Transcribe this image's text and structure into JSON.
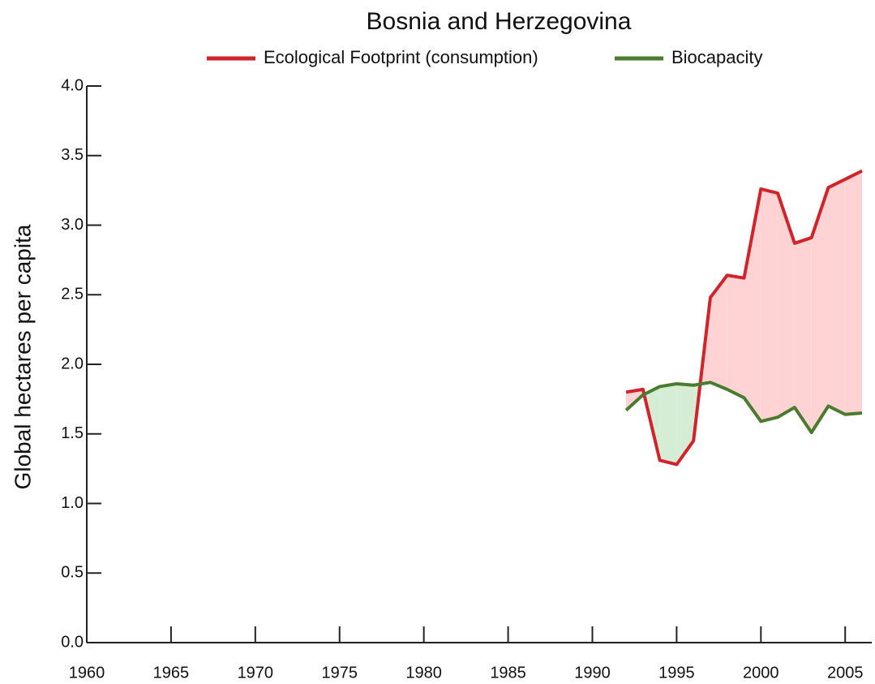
{
  "chart_data": {
    "type": "line",
    "title": "Bosnia and Herzegovina",
    "ylabel": "Global hectares per capita",
    "x": [
      1992,
      1993,
      1994,
      1995,
      1996,
      1997,
      1998,
      1999,
      2000,
      2001,
      2002,
      2003,
      2004,
      2005,
      2006
    ],
    "series": [
      {
        "name": "Ecological Footprint (consumption)",
        "color": "#d0232a",
        "fill": "#ffd3d3",
        "values": [
          1.8,
          1.82,
          1.31,
          1.28,
          1.45,
          2.48,
          2.64,
          2.62,
          3.26,
          3.23,
          2.87,
          2.91,
          3.27,
          3.33,
          3.39
        ]
      },
      {
        "name": "Biocapacity",
        "color": "#4b7b2f",
        "fill": "#d4edd4",
        "values": [
          1.67,
          1.78,
          1.84,
          1.86,
          1.85,
          1.87,
          1.82,
          1.76,
          1.59,
          1.62,
          1.69,
          1.51,
          1.7,
          1.64,
          1.65
        ]
      }
    ],
    "xlim": [
      1960,
      2006
    ],
    "xticks": [
      1960,
      1965,
      1970,
      1975,
      1980,
      1985,
      1990,
      1995,
      2000,
      2005
    ],
    "ylim": [
      0,
      4
    ],
    "yticks": [
      {
        "value": 0,
        "label": "0.0"
      },
      0.5,
      {
        "value": 1,
        "label": "1.0"
      },
      1.5,
      {
        "value": 2,
        "label": "2.0"
      },
      2.5,
      {
        "value": 3,
        "label": "3.0"
      },
      3.5,
      {
        "value": 4,
        "label": "4.0"
      }
    ]
  }
}
